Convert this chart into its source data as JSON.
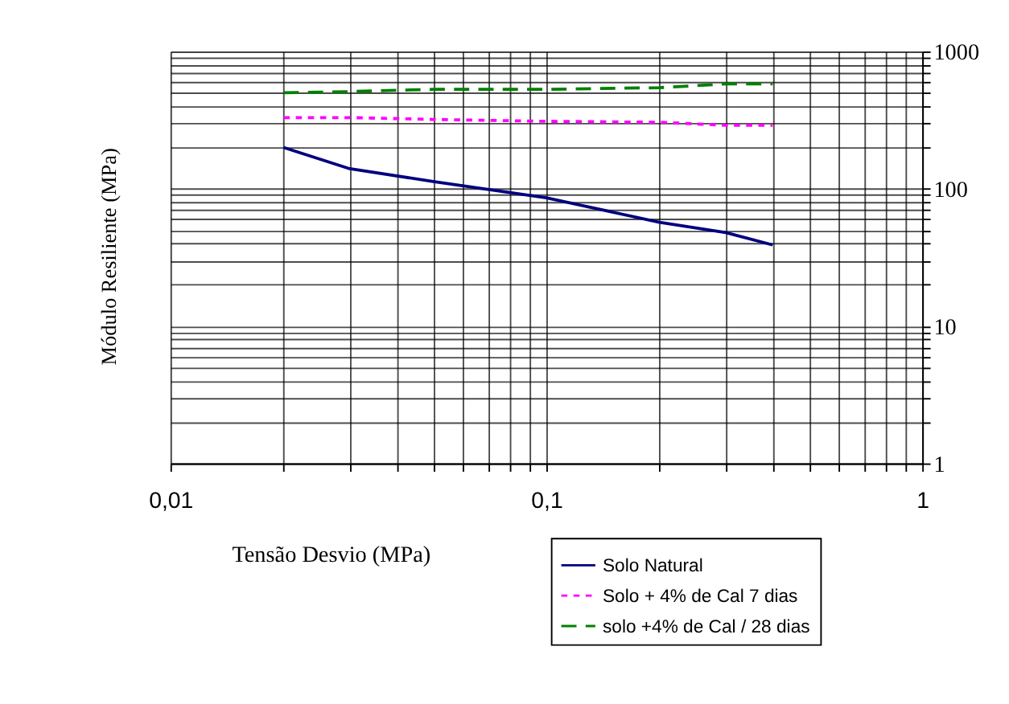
{
  "chart_data": {
    "type": "line",
    "xlabel": "Tensão Desvio (MPa)",
    "ylabel": "Módulo Resiliente (MPa)",
    "log": "xy",
    "grid": true,
    "legend": "bottom right",
    "xlim": [
      0.01,
      1
    ],
    "ylim": [
      1,
      1000
    ],
    "xticks": [
      {
        "value": 0.01,
        "label": "0,01"
      },
      {
        "value": 0.02,
        "label": null
      },
      {
        "value": 0.03,
        "label": null
      },
      {
        "value": 0.04,
        "label": null
      },
      {
        "value": 0.05,
        "label": null
      },
      {
        "value": 0.06,
        "label": null
      },
      {
        "value": 0.07,
        "label": null
      },
      {
        "value": 0.08,
        "label": null
      },
      {
        "value": 0.09,
        "label": null
      },
      {
        "value": 0.1,
        "label": "0,1"
      },
      {
        "value": 0.2,
        "label": null
      },
      {
        "value": 0.3,
        "label": null
      },
      {
        "value": 0.4,
        "label": null
      },
      {
        "value": 0.5,
        "label": null
      },
      {
        "value": 0.6,
        "label": null
      },
      {
        "value": 0.7,
        "label": null
      },
      {
        "value": 0.8,
        "label": null
      },
      {
        "value": 0.9,
        "label": null
      },
      1
    ],
    "yticks": [
      1,
      {
        "value": 2,
        "label": null
      },
      {
        "value": 3,
        "label": null
      },
      {
        "value": 4,
        "label": null
      },
      {
        "value": 5,
        "label": null
      },
      {
        "value": 6,
        "label": null
      },
      {
        "value": 7,
        "label": null
      },
      {
        "value": 8,
        "label": null
      },
      {
        "value": 9,
        "label": null
      },
      10,
      {
        "value": 20,
        "label": null
      },
      {
        "value": 30,
        "label": null
      },
      {
        "value": 40,
        "label": null
      },
      {
        "value": 50,
        "label": null
      },
      {
        "value": 60,
        "label": null
      },
      {
        "value": 70,
        "label": null
      },
      {
        "value": 80,
        "label": null
      },
      {
        "value": 90,
        "label": null
      },
      100,
      {
        "value": 200,
        "label": null
      },
      {
        "value": 300,
        "label": null
      },
      {
        "value": 400,
        "label": null
      },
      {
        "value": 500,
        "label": null
      },
      {
        "value": 600,
        "label": null
      },
      {
        "value": 700,
        "label": null
      },
      {
        "value": 800,
        "label": null
      },
      {
        "value": 900,
        "label": null
      },
      1000
    ],
    "x": [
      0.02,
      0.03,
      0.05,
      0.1,
      0.2,
      0.3,
      0.4
    ],
    "series": [
      {
        "name": "Solo Natural",
        "color": "#000080",
        "line_style": "solid",
        "values": [
          200,
          140,
          113,
          86,
          57,
          48,
          39
        ]
      },
      {
        "name": "Solo + 4% de Cal 7 dias",
        "color": "#ff00ff",
        "line_style": "dotted",
        "values": [
          330,
          330,
          320,
          310,
          305,
          290,
          290
        ]
      },
      {
        "name": "solo +4% de Cal / 28 dias",
        "color": "#008000",
        "line_style": "dashed",
        "values": [
          500,
          510,
          530,
          530,
          545,
          580,
          580
        ]
      }
    ]
  }
}
